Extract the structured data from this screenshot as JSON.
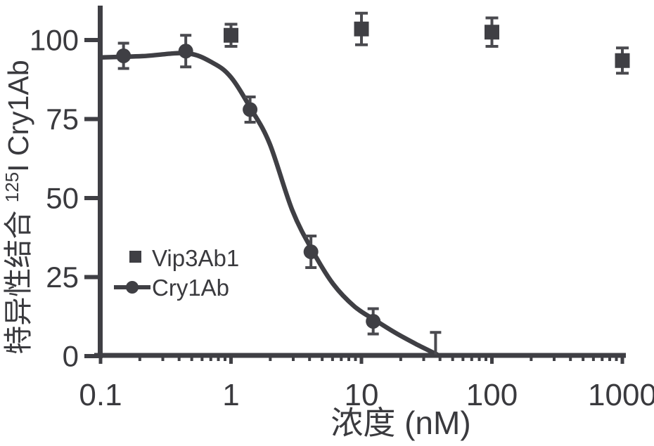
{
  "figure": {
    "background": "#ffffff",
    "ink_color": "#3f3f44",
    "text_color": "#3a3a3e",
    "errorbar_color": "#4a4a4f"
  },
  "chart_data": {
    "type": "scatter",
    "x_scale": "log",
    "title": "",
    "xlabel": "浓度 (nM)",
    "ylabel": "特异性结合 125I Cry1Ab",
    "ylabel_parts": {
      "prefix": "特异性结合 ",
      "superscript": "125",
      "suffix": "I Cry1Ab"
    },
    "xlim": [
      0.1,
      1000
    ],
    "ylim": [
      0,
      100
    ],
    "x_ticks": [
      0.1,
      1,
      10,
      100,
      1000
    ],
    "x_tick_labels": [
      "0.1",
      "1",
      "10",
      "100",
      "1000"
    ],
    "x_minor_tick_multiples": [
      2,
      3,
      4,
      5,
      6,
      7,
      8,
      9
    ],
    "y_ticks": [
      0,
      25,
      50,
      75,
      100
    ],
    "y_tick_labels": [
      "0",
      "25",
      "50",
      "75",
      "100"
    ],
    "grid": "off",
    "legend": {
      "position": "lower-left",
      "entries": [
        {
          "label": "Vip3Ab1",
          "marker": "square",
          "line": false
        },
        {
          "label": "Cry1Ab",
          "marker": "circle",
          "line": true
        }
      ]
    },
    "series": [
      {
        "name": "Vip3Ab1",
        "marker": "square",
        "connected": false,
        "points": [
          {
            "x": 1,
            "y": 101.5,
            "err": 3.5
          },
          {
            "x": 10,
            "y": 103.5,
            "err": 5
          },
          {
            "x": 100,
            "y": 102.5,
            "err": 4.5
          },
          {
            "x": 1000,
            "y": 93.5,
            "err": 4
          }
        ]
      },
      {
        "name": "Cry1Ab",
        "marker": "circle",
        "connected": true,
        "points": [
          {
            "x": 0.15,
            "y": 95,
            "err": 4
          },
          {
            "x": 0.45,
            "y": 96.5,
            "err": 5
          },
          {
            "x": 1.4,
            "y": 78,
            "err": 4
          },
          {
            "x": 4.1,
            "y": 33,
            "err": 5
          },
          {
            "x": 12.3,
            "y": 11,
            "err": 4
          },
          {
            "x": 37,
            "y": 0.5,
            "err": 7,
            "err_low": 0,
            "marker_hidden": true
          }
        ],
        "fit_curve": [
          {
            "x": 0.1,
            "y": 94.5
          },
          {
            "x": 0.21,
            "y": 94.9
          },
          {
            "x": 0.46,
            "y": 95.8
          },
          {
            "x": 0.73,
            "y": 92.7
          },
          {
            "x": 1.0,
            "y": 88.2
          },
          {
            "x": 1.42,
            "y": 78.3
          },
          {
            "x": 1.98,
            "y": 67.2
          },
          {
            "x": 2.95,
            "y": 46.1
          },
          {
            "x": 4.29,
            "y": 32.8
          },
          {
            "x": 6.07,
            "y": 22.8
          },
          {
            "x": 8.84,
            "y": 15.7
          },
          {
            "x": 12.8,
            "y": 11.3
          },
          {
            "x": 18.7,
            "y": 7.1
          },
          {
            "x": 27.1,
            "y": 3.5
          },
          {
            "x": 38.0,
            "y": 0.5
          }
        ]
      }
    ]
  }
}
